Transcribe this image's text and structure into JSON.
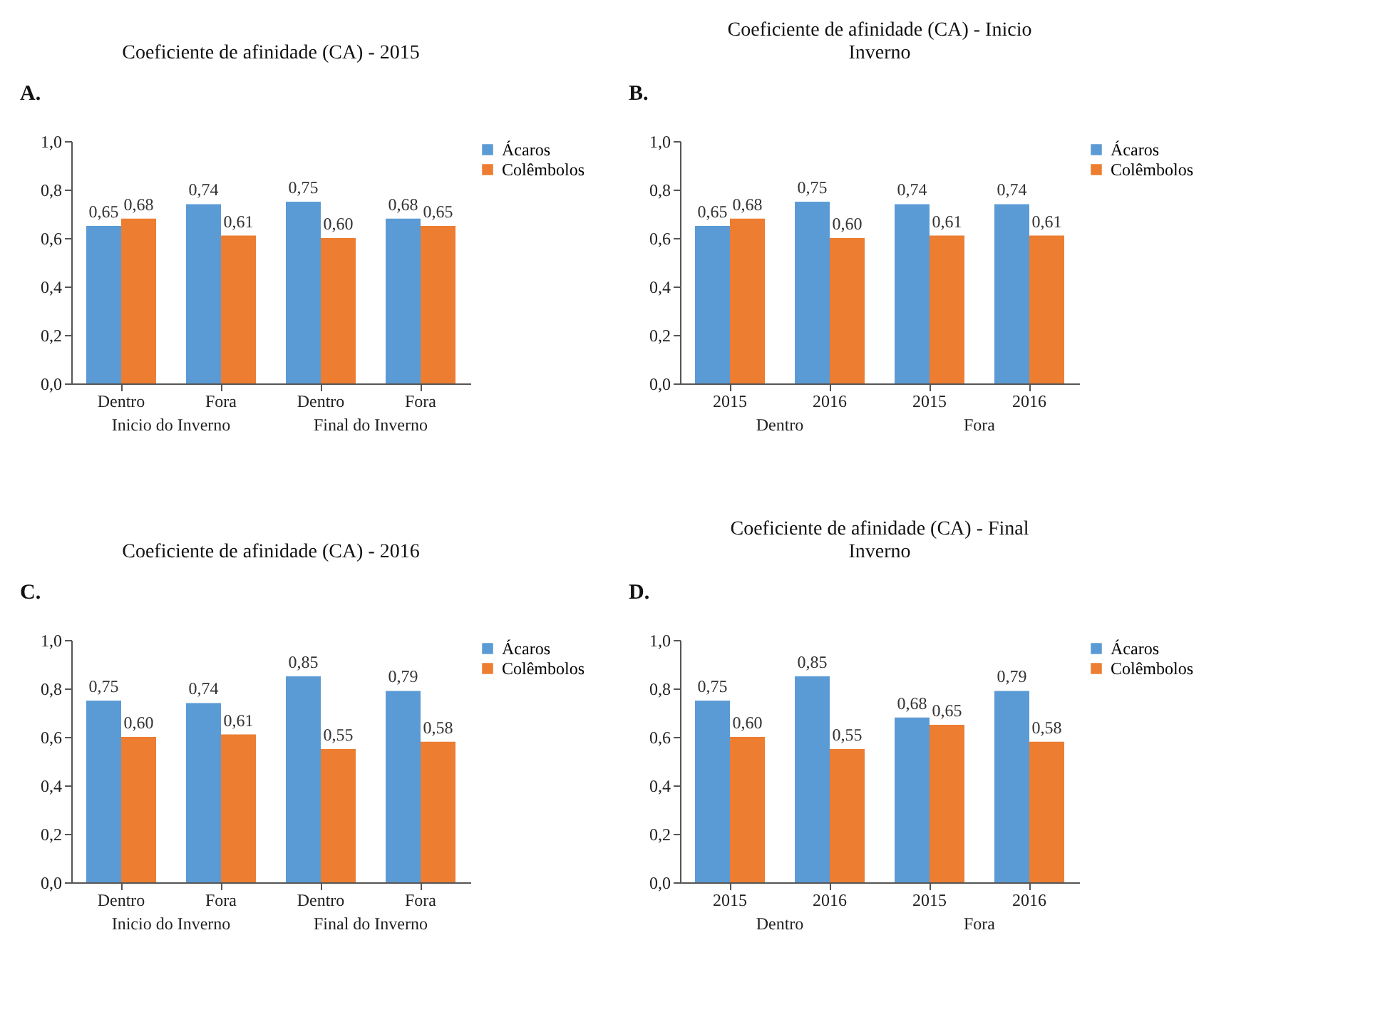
{
  "chart_data": [
    {
      "type": "bar",
      "title": "Coeficiente de afinidade (CA) - 2015",
      "categories": [
        "Dentro",
        "Fora",
        "Dentro",
        "Fora"
      ],
      "series": [
        {
          "name": "Ácaros",
          "color": "#5b9bd5",
          "values": [
            0.65,
            0.74,
            0.75,
            0.68
          ],
          "value_labels": [
            "0,65",
            "0,74",
            "0,75",
            "0,68"
          ]
        },
        {
          "name": "Colêmbolos",
          "color": "#ed7d31",
          "values": [
            0.68,
            0.61,
            0.6,
            0.65
          ],
          "value_labels": [
            "0,68",
            "0,61",
            "0,60",
            "0,65"
          ]
        }
      ],
      "ylim": [
        0,
        1
      ],
      "yticks": [
        {
          "value": 0,
          "label": "0,0"
        },
        {
          "value": 0.2,
          "label": "0,2"
        },
        {
          "value": 0.4,
          "label": "0,4"
        },
        {
          "value": 0.6,
          "label": "0,6"
        },
        {
          "value": 0.8,
          "label": "0,8"
        },
        {
          "value": 1,
          "label": "1,0"
        }
      ],
      "legend": "right",
      "annotations": [
        "A.",
        "Inicio do Inverno",
        "Final do Inverno"
      ]
    },
    {
      "type": "bar",
      "title": "Coeficiente de afinidade (CA) - Inicio Inverno",
      "categories": [
        "2015",
        "2016",
        "2015",
        "2016"
      ],
      "series": [
        {
          "name": "Ácaros",
          "color": "#5b9bd5",
          "values": [
            0.65,
            0.75,
            0.74,
            0.74
          ],
          "value_labels": [
            "0,65",
            "0,75",
            "0,74",
            "0,74"
          ]
        },
        {
          "name": "Colêmbolos",
          "color": "#ed7d31",
          "values": [
            0.68,
            0.6,
            0.61,
            0.61
          ],
          "value_labels": [
            "0,68",
            "0,60",
            "0,61",
            "0,61"
          ]
        }
      ],
      "ylim": [
        0,
        1
      ],
      "yticks": [
        {
          "value": 0,
          "label": "0,0"
        },
        {
          "value": 0.2,
          "label": "0,2"
        },
        {
          "value": 0.4,
          "label": "0,4"
        },
        {
          "value": 0.6,
          "label": "0,6"
        },
        {
          "value": 0.8,
          "label": "0,8"
        },
        {
          "value": 1,
          "label": "1,0"
        }
      ],
      "legend": "right",
      "annotations": [
        "B.",
        "Dentro",
        "Fora"
      ]
    },
    {
      "type": "bar",
      "title": "Coeficiente de afinidade (CA) - 2016",
      "categories": [
        "Dentro",
        "Fora",
        "Dentro",
        "Fora"
      ],
      "series": [
        {
          "name": "Ácaros",
          "color": "#5b9bd5",
          "values": [
            0.75,
            0.74,
            0.85,
            0.79
          ],
          "value_labels": [
            "0,75",
            "0,74",
            "0,85",
            "0,79"
          ]
        },
        {
          "name": "Colêmbolos",
          "color": "#ed7d31",
          "values": [
            0.6,
            0.61,
            0.55,
            0.58
          ],
          "value_labels": [
            "0,60",
            "0,61",
            "0,55",
            "0,58"
          ]
        }
      ],
      "ylim": [
        0,
        1
      ],
      "yticks": [
        {
          "value": 0,
          "label": "0,0"
        },
        {
          "value": 0.2,
          "label": "0,2"
        },
        {
          "value": 0.4,
          "label": "0,4"
        },
        {
          "value": 0.6,
          "label": "0,6"
        },
        {
          "value": 0.8,
          "label": "0,8"
        },
        {
          "value": 1,
          "label": "1,0"
        }
      ],
      "legend": "right",
      "annotations": [
        "C.",
        "Inicio do Inverno",
        "Final do Inverno"
      ]
    },
    {
      "type": "bar",
      "title": "Coeficiente de afinidade (CA) - Final Inverno",
      "categories": [
        "2015",
        "2016",
        "2015",
        "2016"
      ],
      "series": [
        {
          "name": "Ácaros",
          "color": "#5b9bd5",
          "values": [
            0.75,
            0.85,
            0.68,
            0.79
          ],
          "value_labels": [
            "0,75",
            "0,85",
            "0,68",
            "0,79"
          ]
        },
        {
          "name": "Colêmbolos",
          "color": "#ed7d31",
          "values": [
            0.6,
            0.55,
            0.65,
            0.58
          ],
          "value_labels": [
            "0,60",
            "0,55",
            "0,65",
            "0,58"
          ]
        }
      ],
      "ylim": [
        0,
        1
      ],
      "yticks": [
        {
          "value": 0,
          "label": "0,0"
        },
        {
          "value": 0.2,
          "label": "0,2"
        },
        {
          "value": 0.4,
          "label": "0,4"
        },
        {
          "value": 0.6,
          "label": "0,6"
        },
        {
          "value": 0.8,
          "label": "0,8"
        },
        {
          "value": 1,
          "label": "1,0"
        }
      ],
      "legend": "right",
      "annotations": [
        "D.",
        "Dentro",
        "Fora"
      ]
    }
  ]
}
